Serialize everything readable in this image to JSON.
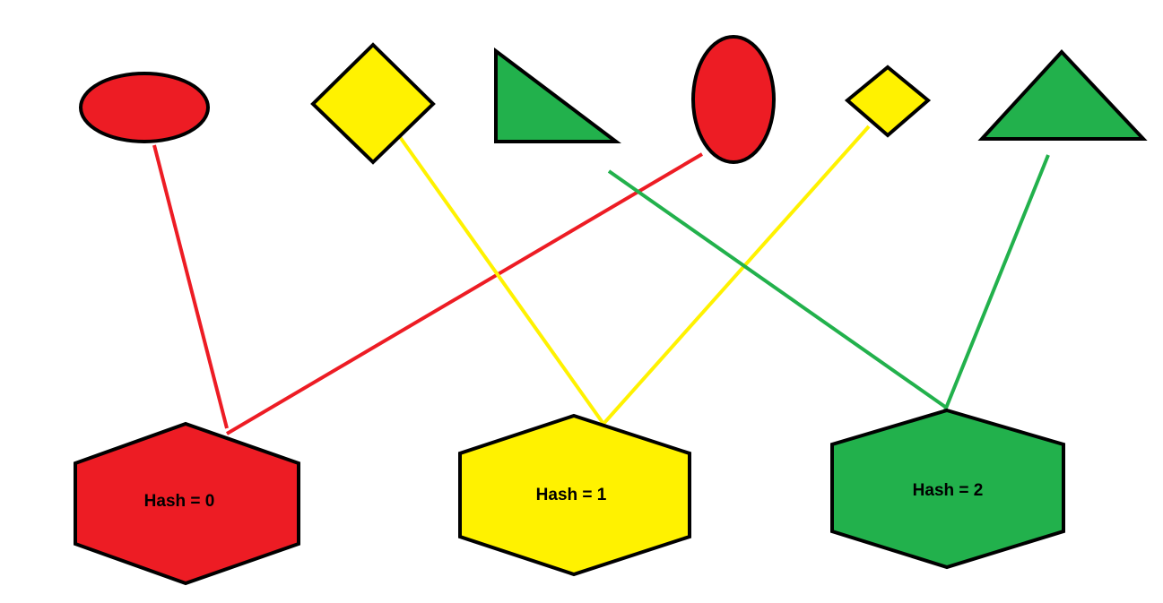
{
  "colors": {
    "red": "#ed1c24",
    "yellow": "#fff200",
    "green": "#22b14c",
    "outline": "#000000"
  },
  "shapes": [
    {
      "id": "red-ellipse-wide",
      "kind": "ellipse",
      "color": "red",
      "bucket": 0
    },
    {
      "id": "yellow-diamond-large",
      "kind": "diamond",
      "color": "yellow",
      "bucket": 1
    },
    {
      "id": "green-right-triangle",
      "kind": "right-triangle",
      "color": "green",
      "bucket": 2
    },
    {
      "id": "red-ellipse-tall",
      "kind": "ellipse",
      "color": "red",
      "bucket": 0
    },
    {
      "id": "yellow-diamond-small",
      "kind": "diamond",
      "color": "yellow",
      "bucket": 1
    },
    {
      "id": "green-triangle",
      "kind": "triangle",
      "color": "green",
      "bucket": 2
    }
  ],
  "buckets": [
    {
      "label": "Hash = 0",
      "color": "red"
    },
    {
      "label": "Hash = 1",
      "color": "yellow"
    },
    {
      "label": "Hash = 2",
      "color": "green"
    }
  ]
}
